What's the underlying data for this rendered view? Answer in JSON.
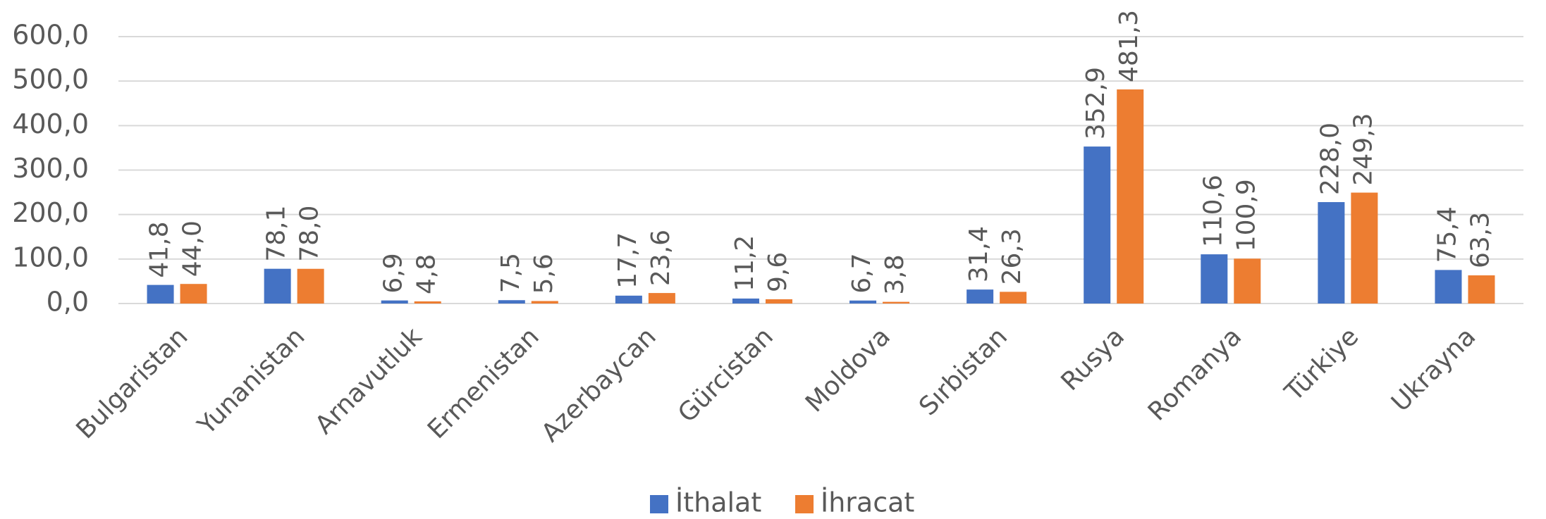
{
  "chart_data": {
    "type": "bar",
    "categories": [
      "Bulgaristan",
      "Yunanistan",
      "Arnavutluk",
      "Ermenistan",
      "Azerbaycan",
      "Gürcistan",
      "Moldova",
      "Sırbistan",
      "Rusya",
      "Romanya",
      "Türkiye",
      "Ukrayna"
    ],
    "series": [
      {
        "name": "İthalat",
        "color": "#4472c4",
        "values": [
          41.8,
          78.1,
          6.9,
          7.5,
          17.7,
          11.2,
          6.7,
          31.4,
          352.9,
          110.6,
          228.0,
          75.4
        ],
        "value_labels": [
          "41,8",
          "78,1",
          "6,9",
          "7,5",
          "17,7",
          "11,2",
          "6,7",
          "31,4",
          "352,9",
          "110,6",
          "228,0",
          "75,4"
        ]
      },
      {
        "name": "İhracat",
        "color": "#ed7d31",
        "values": [
          44.0,
          78.0,
          4.8,
          5.6,
          23.6,
          9.6,
          3.8,
          26.3,
          481.3,
          100.9,
          249.3,
          63.3
        ],
        "value_labels": [
          "44,0",
          "78,0",
          "4,8",
          "5,6",
          "23,6",
          "9,6",
          "3,8",
          "26,3",
          "481,3",
          "100,9",
          "249,3",
          "63,3"
        ]
      }
    ],
    "ylim": [
      0,
      600
    ],
    "yticks": [
      {
        "value": 0,
        "label": "0,0"
      },
      {
        "value": 100,
        "label": "100,0"
      },
      {
        "value": 200,
        "label": "200,0"
      },
      {
        "value": 300,
        "label": "300,0"
      },
      {
        "value": 400,
        "label": "400,0"
      },
      {
        "value": 500,
        "label": "500,0"
      },
      {
        "value": 600,
        "label": "600,0"
      }
    ],
    "grid": true,
    "legend": "bottom"
  }
}
